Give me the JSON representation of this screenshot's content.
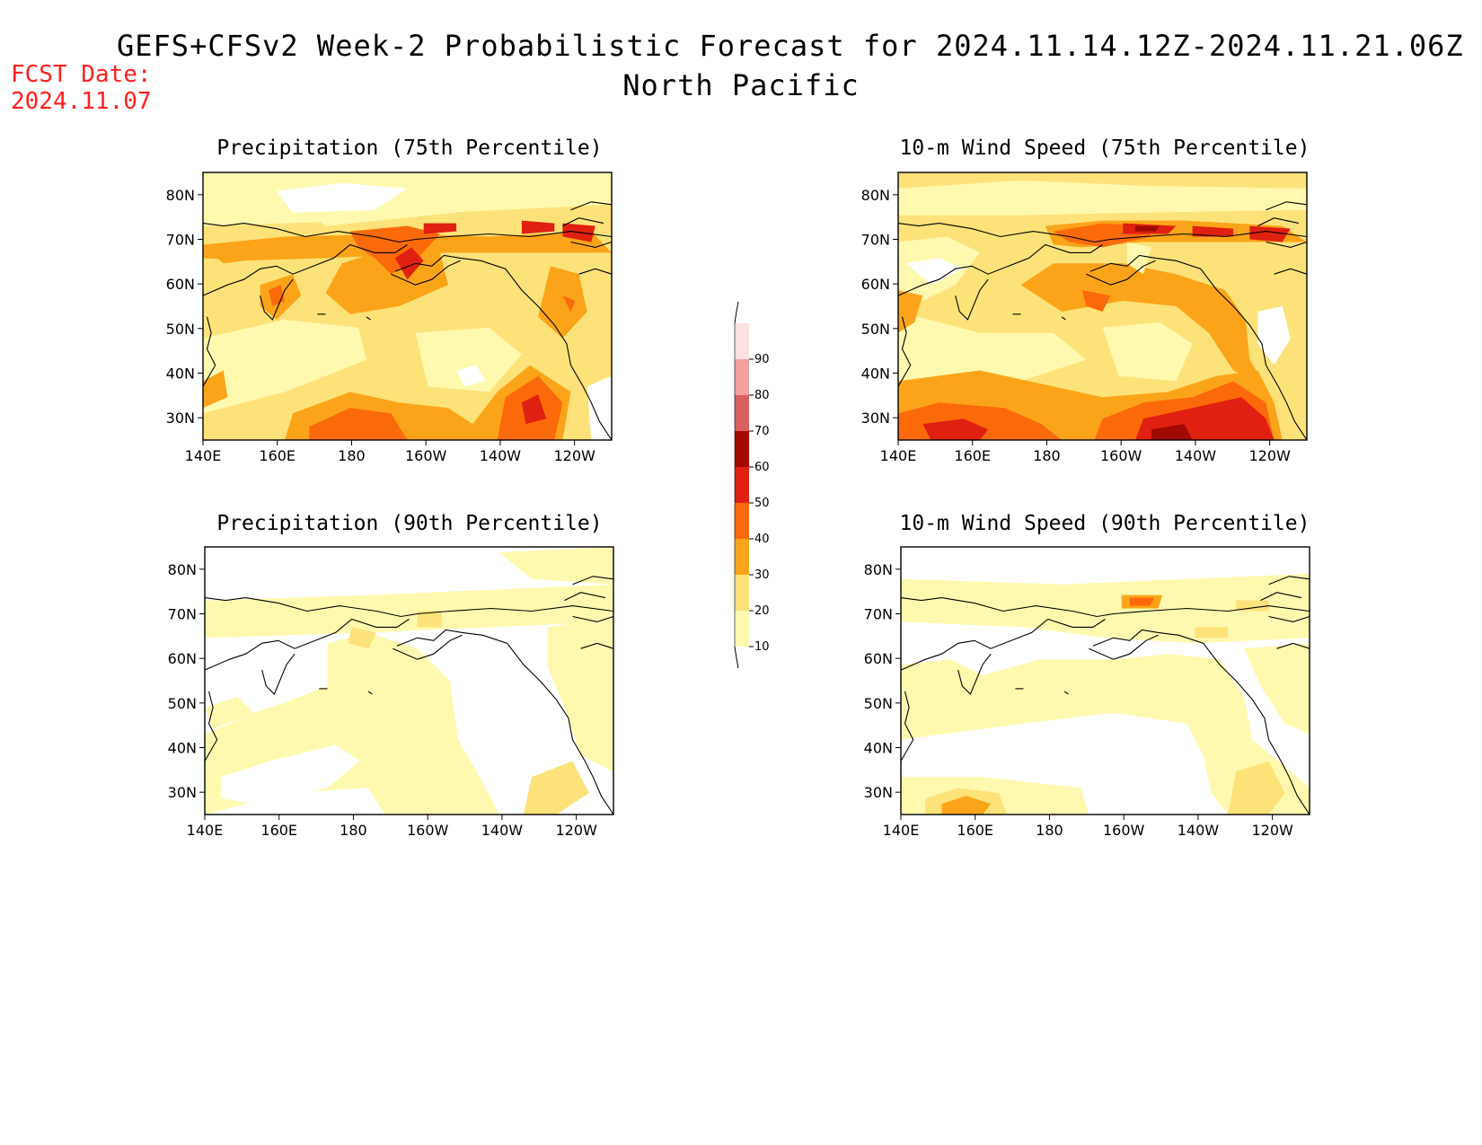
{
  "header": {
    "title": "GEFS+CFSv2 Week-2 Probabilistic Forecast for 2024.11.14.12Z-2024.11.21.06Z",
    "subtitle": "North Pacific",
    "fcst_label": "FCST Date:",
    "fcst_date": "2024.11.07"
  },
  "axes": {
    "lon_ticks": [
      "140E",
      "160E",
      "180",
      "160W",
      "140W",
      "120W"
    ],
    "lat_ticks": [
      "80N",
      "70N",
      "60N",
      "50N",
      "40N",
      "30N"
    ]
  },
  "panels": [
    {
      "id": "precip-75",
      "title": "Precipitation (75th Percentile)"
    },
    {
      "id": "wind-75",
      "title": "10-m Wind Speed (75th Percentile)"
    },
    {
      "id": "precip-90",
      "title": "Precipitation (90th Percentile)"
    },
    {
      "id": "wind-90",
      "title": "10-m Wind Speed (90th Percentile)"
    }
  ],
  "colorbar": {
    "levels": [
      "10",
      "20",
      "30",
      "40",
      "50",
      "60",
      "70",
      "80",
      "90"
    ],
    "colors": [
      "#fff9b0",
      "#fde27a",
      "#fba41a",
      "#fb6a0a",
      "#e02010",
      "#a00a00",
      "#d96060",
      "#f4a0a0",
      "#fde0e0"
    ]
  },
  "palette": {
    "c0": "#ffffff",
    "c1": "#fff9b0",
    "c2": "#fde27a",
    "c3": "#fba41a",
    "c4": "#fb6a0a",
    "c5": "#e02010",
    "c6": "#a00a00"
  }
}
